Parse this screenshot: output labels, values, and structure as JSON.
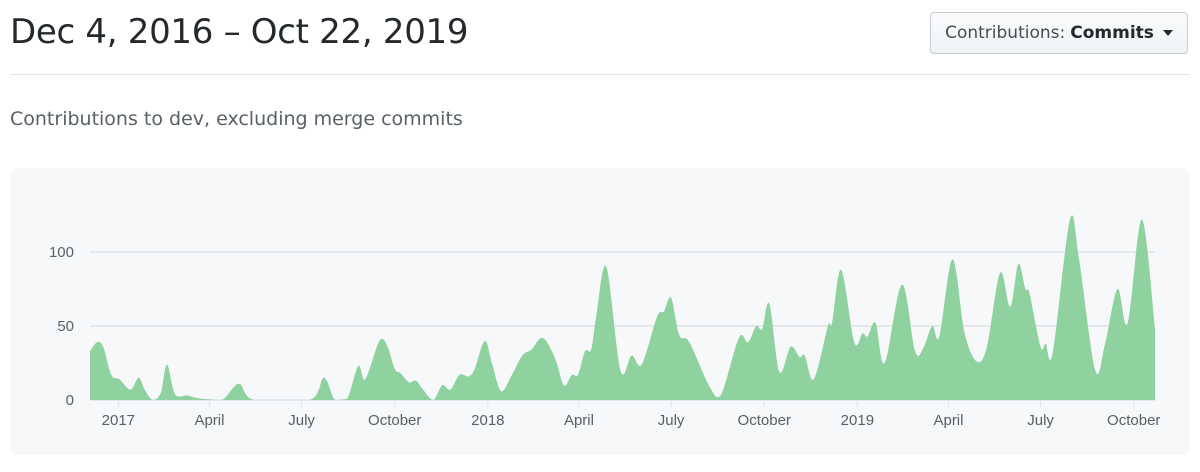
{
  "header": {
    "title": "Dec 4, 2016 – Oct 22, 2019",
    "dropdown_prefix": "Contributions:",
    "dropdown_value": "Commits"
  },
  "subtitle": "Contributions to dev, excluding merge commits",
  "colors": {
    "area": "#90d1a0",
    "grid": "#e1e4e8",
    "card": "#f6f8fa"
  },
  "chart_data": {
    "type": "area",
    "xlim": [
      "2016-12-04",
      "2019-10-22"
    ],
    "ylim": [
      0,
      130
    ],
    "grid": true,
    "y_ticks": [
      0,
      50,
      100
    ],
    "x_ticks": [
      {
        "date": "2017-01-01",
        "label": "2017"
      },
      {
        "date": "2017-04-01",
        "label": "April"
      },
      {
        "date": "2017-07-01",
        "label": "July"
      },
      {
        "date": "2017-10-01",
        "label": "October"
      },
      {
        "date": "2018-01-01",
        "label": "2018"
      },
      {
        "date": "2018-04-01",
        "label": "April"
      },
      {
        "date": "2018-07-01",
        "label": "July"
      },
      {
        "date": "2018-10-01",
        "label": "October"
      },
      {
        "date": "2019-01-01",
        "label": "2019"
      },
      {
        "date": "2019-04-01",
        "label": "April"
      },
      {
        "date": "2019-07-01",
        "label": "July"
      },
      {
        "date": "2019-10-01",
        "label": "October"
      }
    ],
    "points": [
      [
        "2016-12-04",
        33
      ],
      [
        "2016-12-11",
        39
      ],
      [
        "2016-12-17",
        36
      ],
      [
        "2016-12-25",
        17
      ],
      [
        "2017-01-02",
        14
      ],
      [
        "2017-01-13",
        7
      ],
      [
        "2017-01-21",
        15
      ],
      [
        "2017-01-27",
        7
      ],
      [
        "2017-02-04",
        0
      ],
      [
        "2017-02-12",
        5
      ],
      [
        "2017-02-18",
        24
      ],
      [
        "2017-02-26",
        4
      ],
      [
        "2017-03-10",
        3
      ],
      [
        "2017-03-22",
        1
      ],
      [
        "2017-04-13",
        0
      ],
      [
        "2017-04-30",
        11
      ],
      [
        "2017-05-15",
        0
      ],
      [
        "2017-07-09",
        0
      ],
      [
        "2017-07-23",
        15
      ],
      [
        "2017-08-03",
        0
      ],
      [
        "2017-08-15",
        1
      ],
      [
        "2017-08-26",
        23
      ],
      [
        "2017-09-02",
        14
      ],
      [
        "2017-09-16",
        40
      ],
      [
        "2017-09-24",
        36
      ],
      [
        "2017-10-01",
        21
      ],
      [
        "2017-10-07",
        18
      ],
      [
        "2017-10-15",
        12
      ],
      [
        "2017-10-22",
        13
      ],
      [
        "2017-10-29",
        7
      ],
      [
        "2017-11-08",
        0
      ],
      [
        "2017-11-17",
        10
      ],
      [
        "2017-11-25",
        7
      ],
      [
        "2017-12-04",
        17
      ],
      [
        "2017-12-13",
        16
      ],
      [
        "2017-12-19",
        21
      ],
      [
        "2017-12-29",
        40
      ],
      [
        "2018-01-05",
        25
      ],
      [
        "2018-01-14",
        6
      ],
      [
        "2018-01-24",
        16
      ],
      [
        "2018-02-04",
        30
      ],
      [
        "2018-02-13",
        34
      ],
      [
        "2018-02-24",
        42
      ],
      [
        "2018-03-08",
        29
      ],
      [
        "2018-03-17",
        10
      ],
      [
        "2018-03-25",
        17
      ],
      [
        "2018-03-31",
        17
      ],
      [
        "2018-04-07",
        33
      ],
      [
        "2018-04-13",
        34
      ],
      [
        "2018-04-18",
        56
      ],
      [
        "2018-04-28",
        90
      ],
      [
        "2018-05-12",
        20
      ],
      [
        "2018-05-23",
        30
      ],
      [
        "2018-06-02",
        24
      ],
      [
        "2018-06-17",
        56
      ],
      [
        "2018-06-24",
        60
      ],
      [
        "2018-07-01",
        69
      ],
      [
        "2018-07-09",
        44
      ],
      [
        "2018-07-19",
        39
      ],
      [
        "2018-08-08",
        9
      ],
      [
        "2018-08-19",
        3
      ],
      [
        "2018-09-06",
        42
      ],
      [
        "2018-09-15",
        39
      ],
      [
        "2018-09-23",
        50
      ],
      [
        "2018-09-29",
        48
      ],
      [
        "2018-10-06",
        65
      ],
      [
        "2018-10-16",
        19
      ],
      [
        "2018-10-27",
        36
      ],
      [
        "2018-11-05",
        29
      ],
      [
        "2018-11-10",
        30
      ],
      [
        "2018-11-19",
        14
      ],
      [
        "2018-12-03",
        50
      ],
      [
        "2018-12-07",
        52
      ],
      [
        "2018-12-16",
        88
      ],
      [
        "2018-12-29",
        39
      ],
      [
        "2019-01-06",
        45
      ],
      [
        "2019-01-11",
        43
      ],
      [
        "2019-01-19",
        52
      ],
      [
        "2019-01-28",
        25
      ],
      [
        "2019-02-14",
        78
      ],
      [
        "2019-02-27",
        33
      ],
      [
        "2019-03-07",
        35
      ],
      [
        "2019-03-16",
        50
      ],
      [
        "2019-03-23",
        43
      ],
      [
        "2019-04-05",
        95
      ],
      [
        "2019-04-17",
        45
      ],
      [
        "2019-04-29",
        26
      ],
      [
        "2019-05-09",
        36
      ],
      [
        "2019-05-22",
        86
      ],
      [
        "2019-06-01",
        63
      ],
      [
        "2019-06-09",
        92
      ],
      [
        "2019-06-16",
        75
      ],
      [
        "2019-06-20",
        72
      ],
      [
        "2019-07-01",
        36
      ],
      [
        "2019-07-06",
        38
      ],
      [
        "2019-07-13",
        32
      ],
      [
        "2019-07-30",
        122
      ],
      [
        "2019-08-08",
        95
      ],
      [
        "2019-08-24",
        20
      ],
      [
        "2019-09-03",
        39
      ],
      [
        "2019-09-15",
        75
      ],
      [
        "2019-09-25",
        52
      ],
      [
        "2019-10-09",
        122
      ],
      [
        "2019-10-22",
        48
      ]
    ]
  }
}
